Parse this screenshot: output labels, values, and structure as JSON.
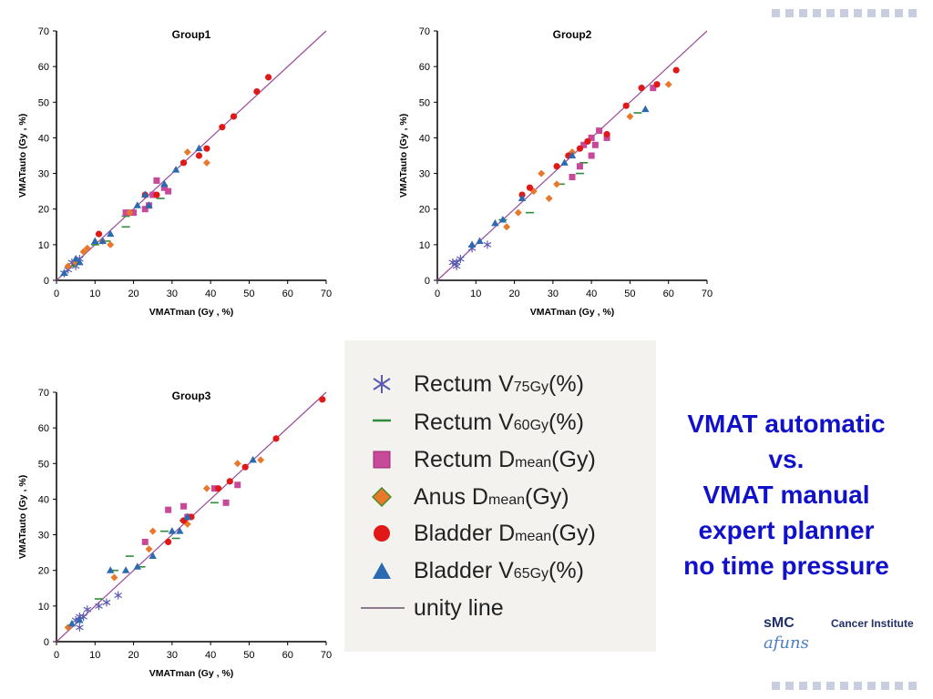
{
  "colors": {
    "rectum_v75": "#5a5ab0",
    "rectum_v60": "#2e8b3a",
    "rectum_dmean": "#c8489a",
    "anus_dmean": "#e8782a",
    "bladder_dmean": "#e01818",
    "bladder_v65": "#2a6ab0",
    "unity": "#9a4a9a",
    "headline": "#1111cc",
    "deco": "#c9cde0"
  },
  "legend": {
    "items": [
      {
        "key": "rectum_v75",
        "marker": "asterisk-icon",
        "label_main": "Rectum V",
        "label_sub": "75Gy",
        "label_tail": "(%)"
      },
      {
        "key": "rectum_v60",
        "marker": "dash-icon",
        "label_main": "Rectum V",
        "label_sub": "60Gy",
        "label_tail": "(%)"
      },
      {
        "key": "rectum_dmean",
        "marker": "square-icon",
        "label_main": "Rectum D",
        "label_sub": "mean",
        "label_tail": "(Gy)"
      },
      {
        "key": "anus_dmean",
        "marker": "diamond-icon",
        "label_main": "Anus D",
        "label_sub": "mean",
        "label_tail": "(Gy)"
      },
      {
        "key": "bladder_dmean",
        "marker": "circle-icon",
        "label_main": "Bladder D",
        "label_sub": "mean",
        "label_tail": "(Gy)"
      },
      {
        "key": "bladder_v65",
        "marker": "triangle-icon",
        "label_main": "Bladder V",
        "label_sub": "65Gy",
        "label_tail": "(%)"
      },
      {
        "key": "unity",
        "marker": "line-icon",
        "label_main": "unity line",
        "label_sub": "",
        "label_tail": ""
      }
    ]
  },
  "headline": {
    "line1": "VMAT automatic",
    "line2": "vs.",
    "line3": "VMAT manual",
    "line4": "expert planner",
    "line5": "no time pressure"
  },
  "logo": {
    "smc": "sMC",
    "cancer_institute": "Cancer Institute",
    "script": "afuns"
  },
  "chart_data": [
    {
      "type": "scatter",
      "title": "Group1",
      "xlabel": "VMATman (Gy , %)",
      "ylabel": "VMATauto (Gy , %)",
      "xlim": [
        0,
        70
      ],
      "ylim": [
        0,
        70
      ],
      "xticks": [
        0,
        10,
        20,
        30,
        40,
        50,
        60,
        70
      ],
      "yticks": [
        0,
        10,
        20,
        30,
        40,
        50,
        60,
        70
      ],
      "unity_line": true,
      "series": [
        {
          "key": "rectum_v75",
          "points": [
            [
              2,
              2
            ],
            [
              3,
              3
            ],
            [
              4,
              5
            ],
            [
              5,
              4
            ],
            [
              6,
              6
            ]
          ]
        },
        {
          "key": "rectum_v60",
          "points": [
            [
              4,
              4
            ],
            [
              10,
              10
            ],
            [
              13,
              11
            ],
            [
              18,
              15
            ],
            [
              18,
              18
            ],
            [
              27,
              23
            ]
          ]
        },
        {
          "key": "rectum_dmean",
          "points": [
            [
              18,
              19
            ],
            [
              20,
              19
            ],
            [
              23,
              20
            ],
            [
              24,
              21
            ],
            [
              25,
              24
            ],
            [
              26,
              28
            ],
            [
              28,
              26
            ],
            [
              29,
              25
            ]
          ]
        },
        {
          "key": "anus_dmean",
          "points": [
            [
              3,
              4
            ],
            [
              5,
              5
            ],
            [
              7,
              8
            ],
            [
              8,
              9
            ],
            [
              12,
              11
            ],
            [
              14,
              10
            ],
            [
              19,
              19
            ],
            [
              34,
              36
            ],
            [
              39,
              33
            ]
          ]
        },
        {
          "key": "bladder_dmean",
          "points": [
            [
              11,
              13
            ],
            [
              23,
              24
            ],
            [
              26,
              24
            ],
            [
              33,
              33
            ],
            [
              37,
              35
            ],
            [
              39,
              37
            ],
            [
              43,
              43
            ],
            [
              46,
              46
            ],
            [
              52,
              53
            ],
            [
              55,
              57
            ]
          ]
        },
        {
          "key": "bladder_v65",
          "points": [
            [
              2,
              2
            ],
            [
              5,
              6
            ],
            [
              6,
              5
            ],
            [
              10,
              11
            ],
            [
              12,
              11
            ],
            [
              14,
              13
            ],
            [
              21,
              21
            ],
            [
              23,
              24
            ],
            [
              24,
              21
            ],
            [
              28,
              27
            ],
            [
              31,
              31
            ],
            [
              37,
              37
            ]
          ]
        }
      ]
    },
    {
      "type": "scatter",
      "title": "Group2",
      "xlabel": "VMATman (Gy , %)",
      "ylabel": "VMATauto (Gy , %)",
      "xlim": [
        0,
        70
      ],
      "ylim": [
        0,
        70
      ],
      "xticks": [
        0,
        10,
        20,
        30,
        40,
        50,
        60,
        70
      ],
      "yticks": [
        0,
        10,
        20,
        30,
        40,
        50,
        60,
        70
      ],
      "unity_line": true,
      "series": [
        {
          "key": "rectum_v75",
          "points": [
            [
              4,
              5
            ],
            [
              5,
              4
            ],
            [
              5,
              5
            ],
            [
              6,
              6
            ],
            [
              9,
              9
            ],
            [
              13,
              10
            ]
          ]
        },
        {
          "key": "rectum_v60",
          "points": [
            [
              17,
              17
            ],
            [
              24,
              19
            ],
            [
              32,
              27
            ],
            [
              37,
              30
            ],
            [
              38,
              33
            ],
            [
              52,
              47
            ]
          ]
        },
        {
          "key": "rectum_dmean",
          "points": [
            [
              35,
              29
            ],
            [
              37,
              32
            ],
            [
              38,
              38
            ],
            [
              40,
              35
            ],
            [
              40,
              40
            ],
            [
              41,
              38
            ],
            [
              42,
              42
            ],
            [
              44,
              40
            ],
            [
              56,
              54
            ]
          ]
        },
        {
          "key": "anus_dmean",
          "points": [
            [
              18,
              15
            ],
            [
              21,
              19
            ],
            [
              25,
              25
            ],
            [
              27,
              30
            ],
            [
              29,
              23
            ],
            [
              31,
              27
            ],
            [
              35,
              36
            ],
            [
              50,
              46
            ],
            [
              60,
              55
            ]
          ]
        },
        {
          "key": "bladder_dmean",
          "points": [
            [
              22,
              24
            ],
            [
              24,
              26
            ],
            [
              31,
              32
            ],
            [
              34,
              35
            ],
            [
              37,
              37
            ],
            [
              39,
              39
            ],
            [
              44,
              41
            ],
            [
              49,
              49
            ],
            [
              53,
              54
            ],
            [
              57,
              55
            ],
            [
              62,
              59
            ]
          ]
        },
        {
          "key": "bladder_v65",
          "points": [
            [
              9,
              10
            ],
            [
              11,
              11
            ],
            [
              15,
              16
            ],
            [
              17,
              17
            ],
            [
              22,
              23
            ],
            [
              33,
              33
            ],
            [
              35,
              35
            ],
            [
              54,
              48
            ]
          ]
        }
      ]
    },
    {
      "type": "scatter",
      "title": "Group3",
      "xlabel": "VMATman (Gy , %)",
      "ylabel": "VMATauto (Gy , %)",
      "xlim": [
        0,
        70
      ],
      "ylim": [
        0,
        70
      ],
      "xticks": [
        0,
        10,
        20,
        30,
        40,
        50,
        60,
        70
      ],
      "yticks": [
        0,
        10,
        20,
        30,
        40,
        50,
        60,
        70
      ],
      "unity_line": true,
      "series": [
        {
          "key": "rectum_v75",
          "points": [
            [
              5,
              6
            ],
            [
              6,
              4
            ],
            [
              6,
              7
            ],
            [
              8,
              9
            ],
            [
              11,
              10
            ],
            [
              13,
              11
            ],
            [
              16,
              13
            ],
            [
              7,
              7
            ]
          ]
        },
        {
          "key": "rectum_v60",
          "points": [
            [
              11,
              12
            ],
            [
              15,
              20
            ],
            [
              19,
              24
            ],
            [
              22,
              21
            ],
            [
              28,
              31
            ],
            [
              31,
              29
            ],
            [
              33,
              34
            ],
            [
              41,
              39
            ]
          ]
        },
        {
          "key": "rectum_dmean",
          "points": [
            [
              23,
              28
            ],
            [
              29,
              37
            ],
            [
              33,
              38
            ],
            [
              34,
              35
            ],
            [
              41,
              43
            ],
            [
              44,
              39
            ],
            [
              47,
              44
            ]
          ]
        },
        {
          "key": "anus_dmean",
          "points": [
            [
              3,
              4
            ],
            [
              15,
              18
            ],
            [
              24,
              26
            ],
            [
              25,
              31
            ],
            [
              34,
              33
            ],
            [
              39,
              43
            ],
            [
              47,
              50
            ],
            [
              53,
              51
            ]
          ]
        },
        {
          "key": "bladder_dmean",
          "points": [
            [
              29,
              28
            ],
            [
              33,
              34
            ],
            [
              35,
              35
            ],
            [
              42,
              43
            ],
            [
              45,
              45
            ],
            [
              49,
              49
            ],
            [
              57,
              57
            ],
            [
              69,
              68
            ]
          ]
        },
        {
          "key": "bladder_v65",
          "points": [
            [
              4,
              5
            ],
            [
              6,
              6
            ],
            [
              14,
              20
            ],
            [
              18,
              20
            ],
            [
              21,
              21
            ],
            [
              25,
              24
            ],
            [
              30,
              31
            ],
            [
              32,
              31
            ],
            [
              34,
              35
            ],
            [
              51,
              51
            ]
          ]
        }
      ]
    }
  ]
}
